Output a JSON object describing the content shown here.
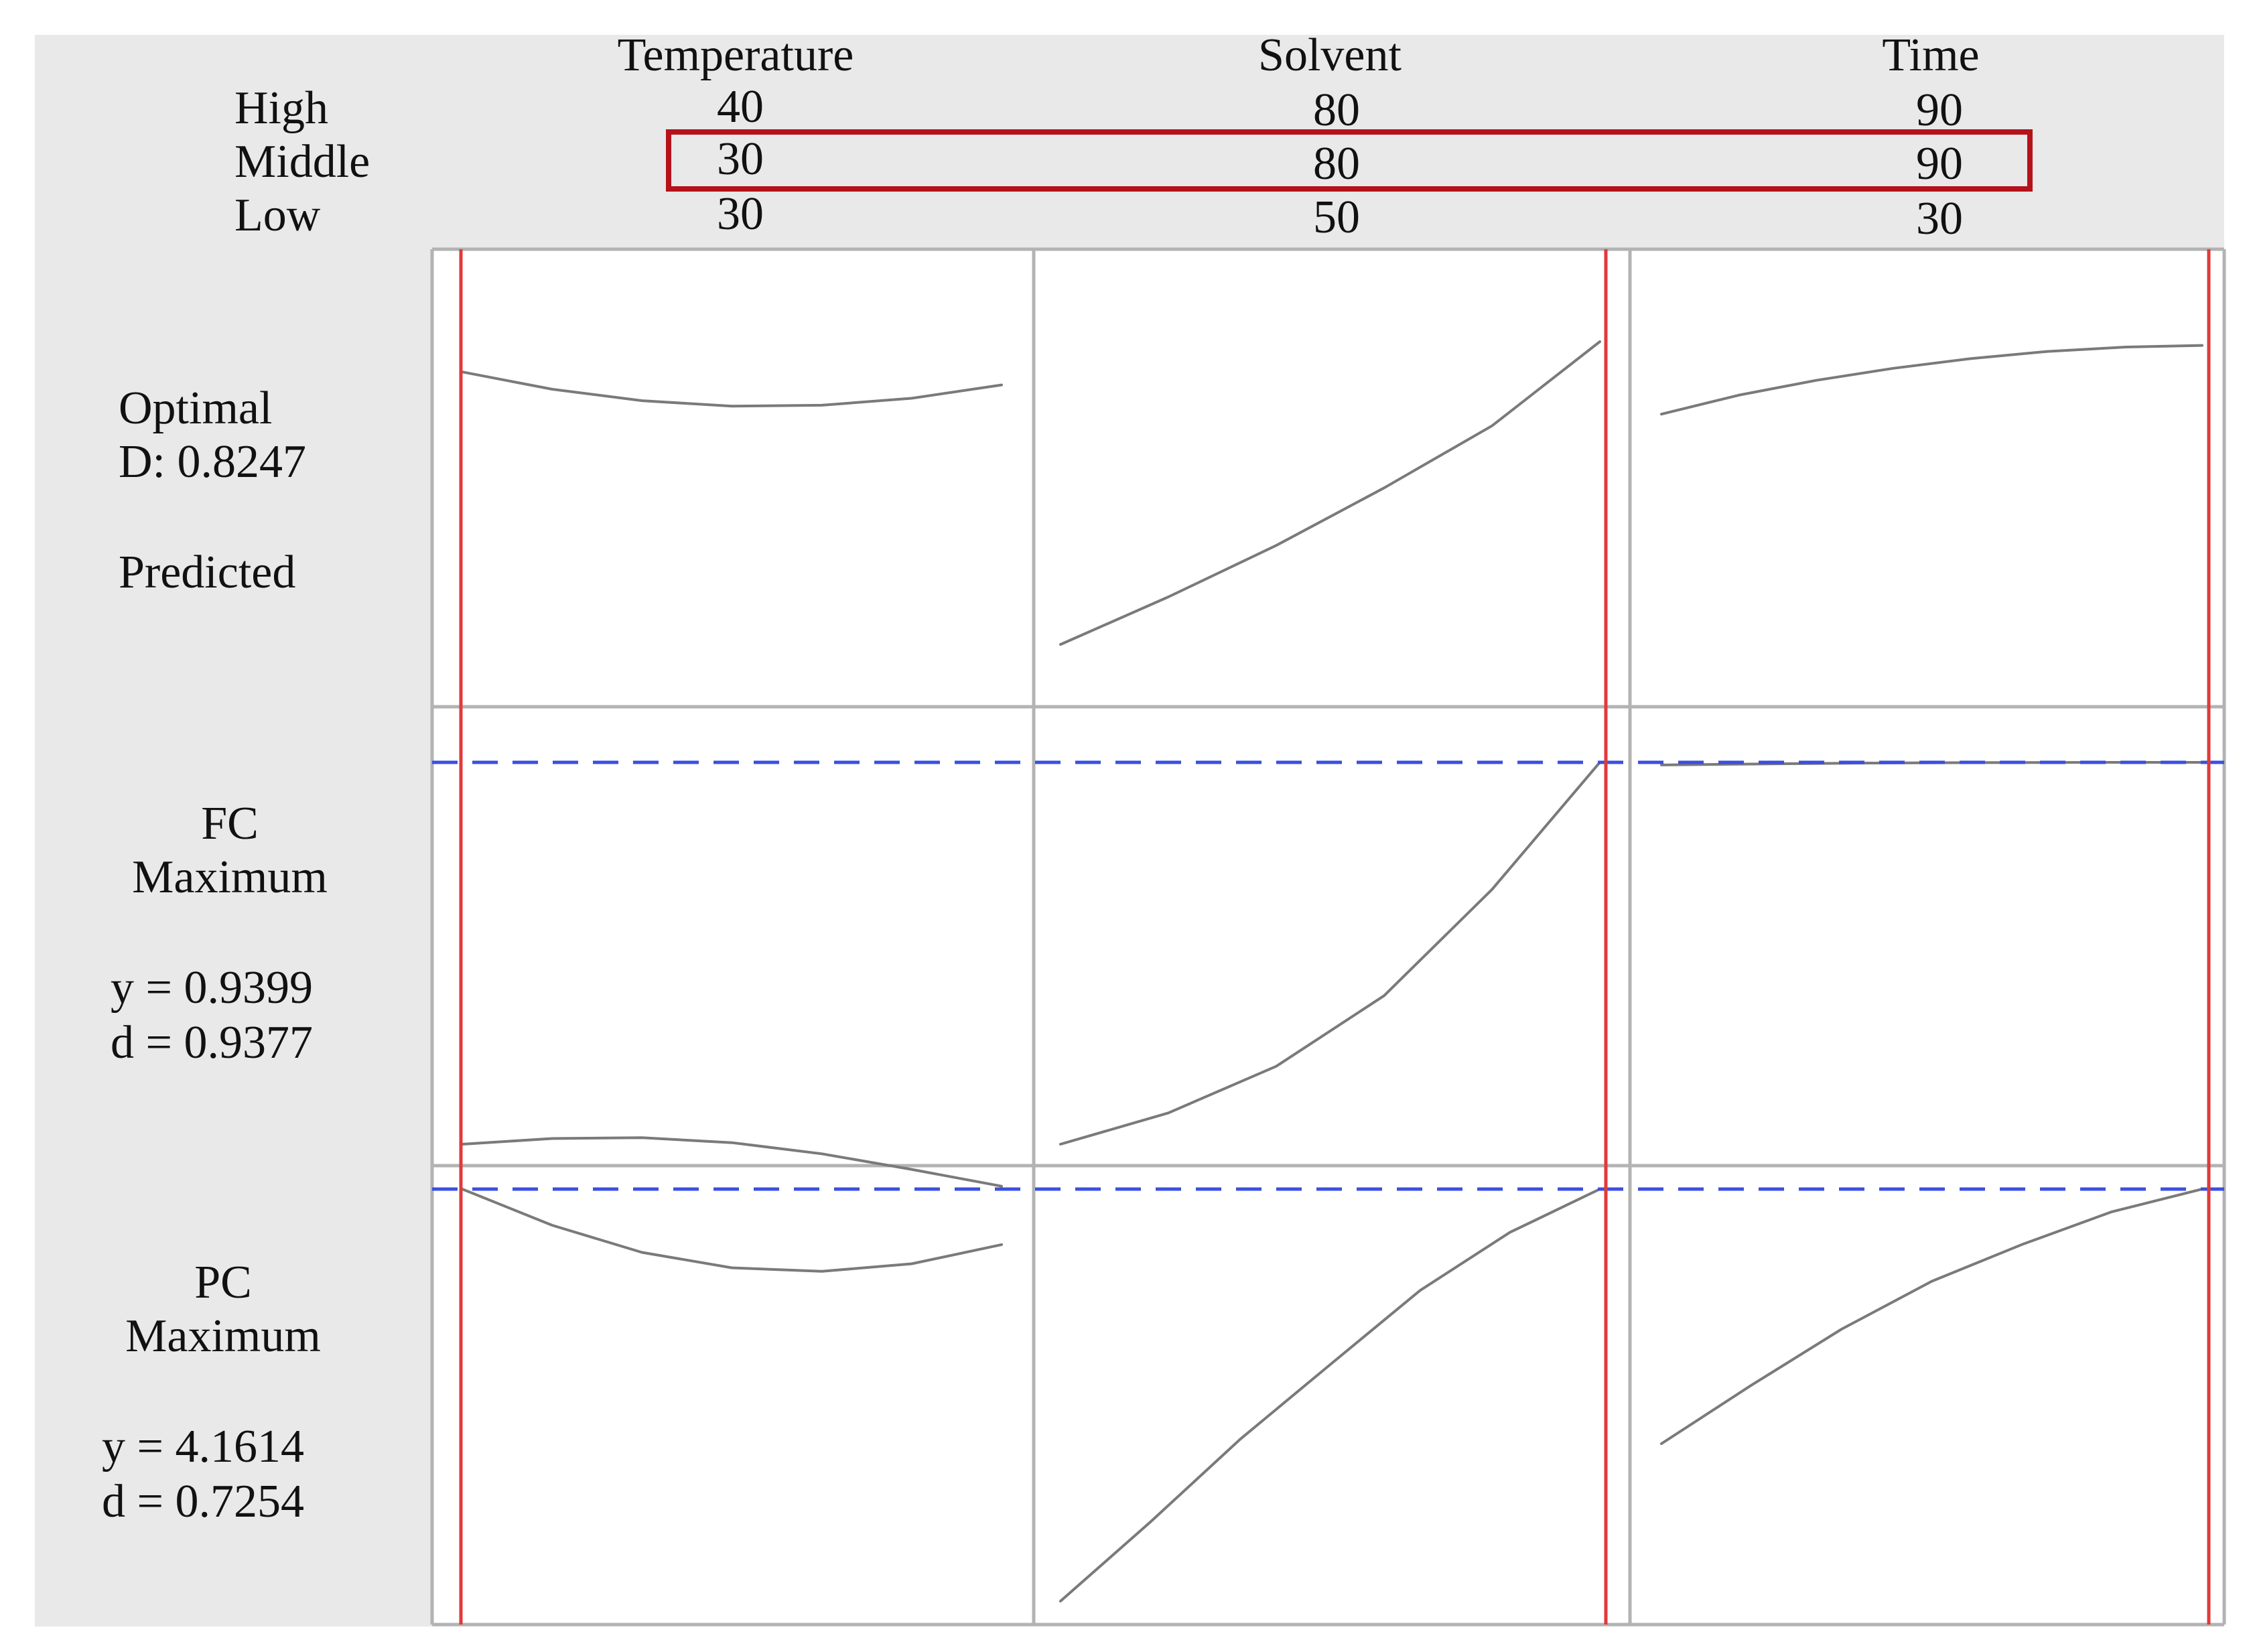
{
  "colors": {
    "panel_background": "#e9e9e9",
    "curve": "#7a7a7a",
    "current_setting_line": "#e03a3a",
    "target_line": "#3b4fe0",
    "highlight_box": "#b5121b",
    "grid": "#b3b3b3"
  },
  "setting_rows": [
    "High",
    "Middle",
    "Low"
  ],
  "factors": [
    {
      "name": "Temperature",
      "high": "40",
      "middle": "30",
      "low": "30"
    },
    {
      "name": "Solvent",
      "high": "80",
      "middle": "80",
      "low": "50"
    },
    {
      "name": "Time",
      "high": "90",
      "middle": "90",
      "low": "30"
    }
  ],
  "responses": [
    {
      "line1": "Optimal",
      "line2": "D: 0.8247",
      "line3": "Predicted"
    },
    {
      "line1": "FC",
      "line2": "Maximum",
      "y_text": "y = 0.9399",
      "d_text": "d = 0.9377"
    },
    {
      "line1": "PC",
      "line2": "Maximum",
      "y_text": "y = 4.1614",
      "d_text": "d = 0.7254"
    }
  ],
  "chart_data": {
    "type": "line",
    "factor_ranges": {
      "Temperature": [
        30,
        40
      ],
      "Solvent": [
        50,
        80
      ],
      "Time": [
        30,
        90
      ]
    },
    "current_settings": {
      "Temperature": 30,
      "Solvent": 80,
      "Time": 90
    },
    "panels": [
      {
        "row": 0,
        "col": 0,
        "series": [
          0.9,
          0.843,
          0.805,
          0.787,
          0.79,
          0.813,
          0.857
        ]
      },
      {
        "row": 0,
        "col": 1,
        "series": [
          0.0,
          0.157,
          0.327,
          0.517,
          0.722,
          1.0
        ]
      },
      {
        "row": 0,
        "col": 2,
        "series": [
          0.41,
          0.567,
          0.69,
          0.79,
          0.87,
          0.93,
          0.966,
          0.98
        ]
      },
      {
        "row": 1,
        "col": 0,
        "series": [
          1.0,
          0.985,
          0.983,
          0.996,
          1.025,
          1.066,
          1.11
        ]
      },
      {
        "row": 1,
        "col": 1,
        "series": [
          0.0,
          0.082,
          0.204,
          0.389,
          0.667,
          1.0
        ]
      },
      {
        "row": 1,
        "col": 2,
        "series": [
          0.925,
          0.957,
          0.98,
          0.993,
          1.0,
          1.0
        ]
      },
      {
        "row": 2,
        "col": 0,
        "series": [
          1.0,
          0.8,
          0.65,
          0.565,
          0.545,
          0.587,
          0.693
        ]
      },
      {
        "row": 2,
        "col": 1,
        "series": [
          0.0,
          0.192,
          0.393,
          0.574,
          0.754,
          0.895,
          1.0
        ]
      },
      {
        "row": 2,
        "col": 2,
        "series": [
          0.0,
          0.23,
          0.45,
          0.638,
          0.782,
          0.911,
          1.0
        ]
      }
    ]
  }
}
